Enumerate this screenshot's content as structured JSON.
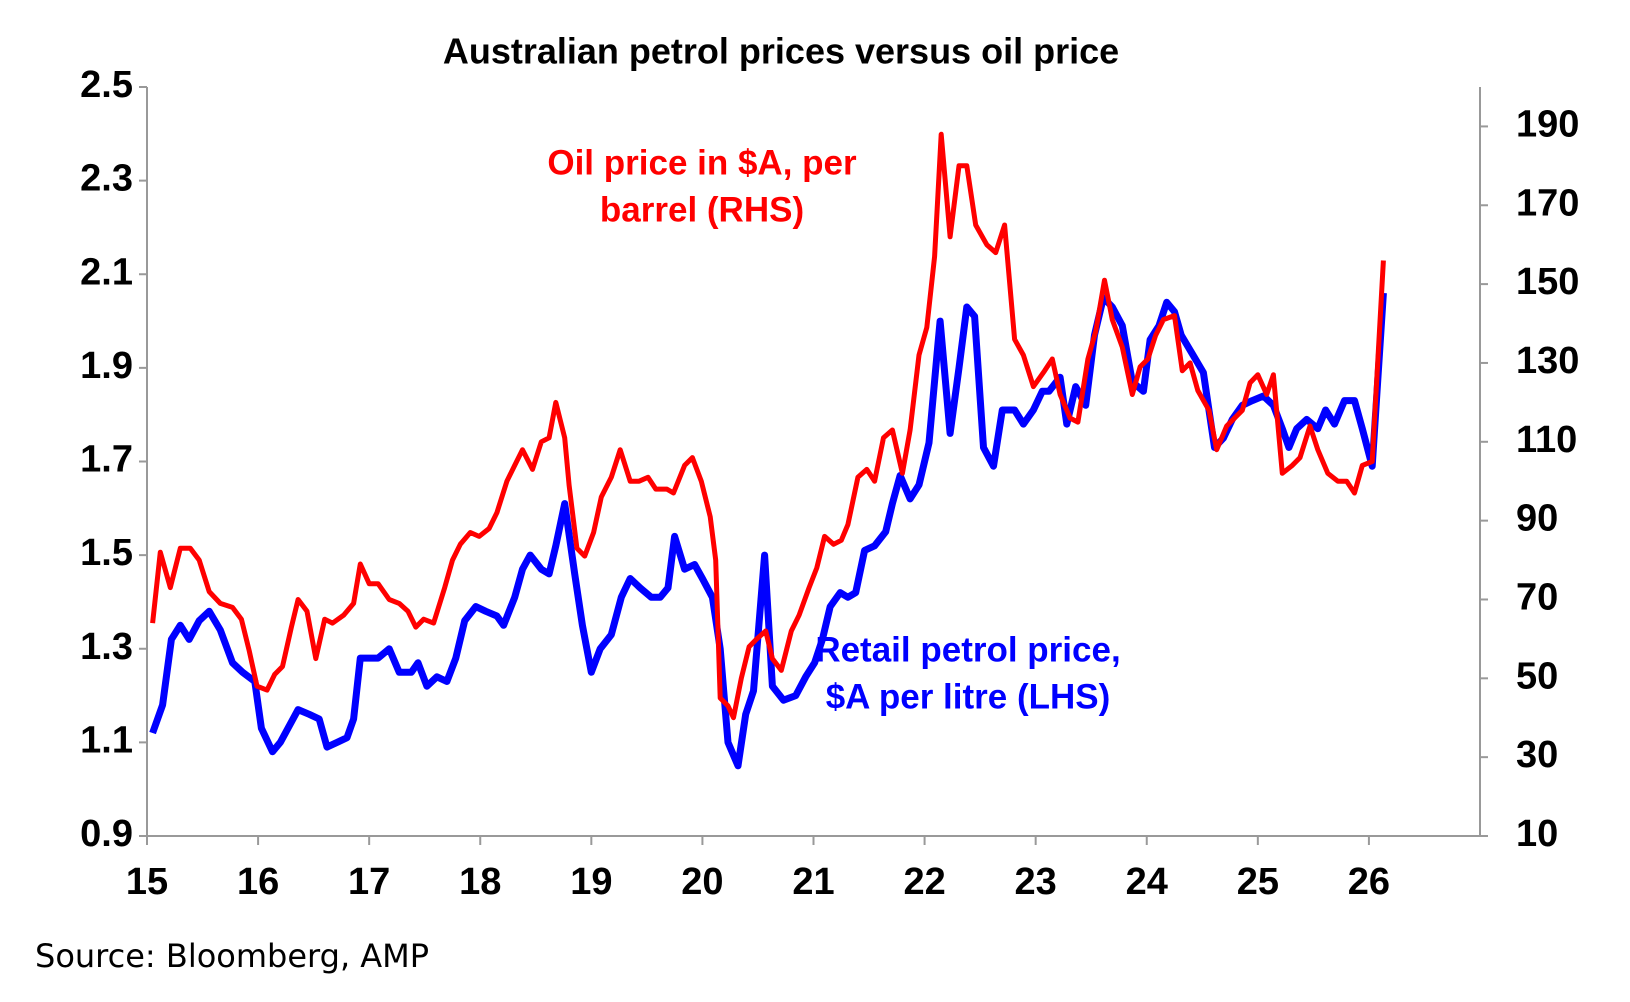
{
  "chart_data": {
    "type": "line",
    "title": "Australian petrol prices versus oil price",
    "source": "Source: Bloomberg, AMP",
    "xlim": [
      15,
      27
    ],
    "xticks": [
      15,
      16,
      17,
      18,
      19,
      20,
      21,
      22,
      23,
      24,
      25,
      26
    ],
    "ylim": [
      0.9,
      2.5
    ],
    "yticks": [
      0.9,
      1.1,
      1.3,
      1.5,
      1.7,
      1.9,
      2.1,
      2.3,
      2.5
    ],
    "y2lim": [
      10,
      200
    ],
    "y2ticks": [
      10,
      30,
      50,
      70,
      90,
      110,
      130,
      150,
      170,
      190
    ],
    "grid": false,
    "annotations": [
      {
        "lines": [
          "Oil price in $A, per",
          "barrel (RHS)"
        ],
        "color": "#ff0000"
      },
      {
        "lines": [
          "Retail petrol price,",
          "$A per litre (LHS)"
        ],
        "color": "#0000ff"
      }
    ],
    "series": [
      {
        "name": "Retail petrol price, $A per litre (LHS)",
        "color": "#0000ff",
        "axis": "y",
        "x": [
          15.05,
          15.14,
          15.22,
          15.3,
          15.38,
          15.47,
          15.56,
          15.66,
          15.77,
          15.86,
          15.97,
          16.03,
          16.13,
          16.2,
          16.36,
          16.46,
          16.55,
          16.62,
          16.71,
          16.8,
          16.86,
          16.92,
          17.08,
          17.18,
          17.27,
          17.38,
          17.44,
          17.52,
          17.61,
          17.7,
          17.78,
          17.86,
          17.96,
          18.05,
          18.15,
          18.21,
          18.31,
          18.38,
          18.45,
          18.55,
          18.62,
          18.68,
          18.76,
          18.85,
          18.92,
          19.0,
          19.08,
          19.18,
          19.27,
          19.35,
          19.44,
          19.54,
          19.62,
          19.69,
          19.75,
          19.84,
          19.93,
          20.0,
          20.09,
          20.16,
          20.23,
          20.32,
          20.39,
          20.46,
          20.56,
          20.63,
          20.73,
          20.84,
          20.93,
          21.01,
          21.08,
          21.15,
          21.24,
          21.31,
          21.38,
          21.46,
          21.55,
          21.65,
          21.71,
          21.78,
          21.87,
          21.95,
          22.04,
          22.12,
          22.14,
          22.23,
          22.31,
          22.38,
          22.45,
          22.53,
          22.62,
          22.7,
          22.81,
          22.89,
          22.98,
          23.06,
          23.12,
          23.22,
          23.28,
          23.36,
          23.45,
          23.53,
          23.61,
          23.69,
          23.78,
          23.87,
          23.97,
          24.03,
          24.11,
          24.18,
          24.25,
          24.31,
          24.41,
          24.51,
          24.61,
          24.69,
          24.77,
          24.86,
          24.95,
          25.05,
          25.14,
          25.22,
          25.28,
          25.35,
          25.44,
          25.54,
          25.61,
          25.69,
          25.78,
          25.87,
          25.94,
          26.03,
          26.13
        ],
        "values": [
          1.12,
          1.18,
          1.32,
          1.35,
          1.32,
          1.36,
          1.38,
          1.34,
          1.27,
          1.25,
          1.23,
          1.13,
          1.08,
          1.1,
          1.17,
          1.16,
          1.15,
          1.09,
          1.1,
          1.11,
          1.15,
          1.28,
          1.28,
          1.3,
          1.25,
          1.25,
          1.27,
          1.22,
          1.24,
          1.23,
          1.28,
          1.36,
          1.39,
          1.38,
          1.37,
          1.35,
          1.41,
          1.47,
          1.5,
          1.47,
          1.46,
          1.52,
          1.61,
          1.46,
          1.35,
          1.25,
          1.3,
          1.33,
          1.41,
          1.45,
          1.43,
          1.41,
          1.41,
          1.43,
          1.54,
          1.47,
          1.48,
          1.45,
          1.41,
          1.3,
          1.1,
          1.05,
          1.16,
          1.21,
          1.5,
          1.22,
          1.19,
          1.2,
          1.24,
          1.27,
          1.32,
          1.39,
          1.42,
          1.41,
          1.42,
          1.51,
          1.52,
          1.55,
          1.61,
          1.67,
          1.62,
          1.65,
          1.74,
          1.95,
          2.0,
          1.76,
          1.9,
          2.03,
          2.01,
          1.73,
          1.69,
          1.81,
          1.81,
          1.78,
          1.81,
          1.85,
          1.85,
          1.88,
          1.78,
          1.86,
          1.82,
          1.97,
          2.05,
          2.03,
          1.99,
          1.87,
          1.85,
          1.96,
          1.99,
          2.04,
          2.02,
          1.97,
          1.93,
          1.89,
          1.73,
          1.75,
          1.79,
          1.82,
          1.83,
          1.84,
          1.82,
          1.77,
          1.73,
          1.77,
          1.79,
          1.77,
          1.81,
          1.78,
          1.83,
          1.83,
          1.77,
          1.69,
          2.06
        ]
      },
      {
        "name": "Oil price in $A, per barrel (RHS)",
        "color": "#ff0000",
        "axis": "y2",
        "x": [
          15.05,
          15.12,
          15.21,
          15.3,
          15.39,
          15.47,
          15.56,
          15.66,
          15.77,
          15.85,
          15.92,
          15.99,
          16.08,
          16.15,
          16.22,
          16.3,
          16.36,
          16.44,
          16.52,
          16.6,
          16.67,
          16.77,
          16.86,
          16.92,
          17.0,
          17.08,
          17.18,
          17.27,
          17.35,
          17.42,
          17.49,
          17.58,
          17.68,
          17.75,
          17.82,
          17.91,
          17.99,
          18.08,
          18.15,
          18.24,
          18.31,
          18.38,
          18.47,
          18.55,
          18.62,
          18.68,
          18.76,
          18.8,
          18.87,
          18.94,
          19.02,
          19.09,
          19.18,
          19.26,
          19.35,
          19.43,
          19.51,
          19.58,
          19.68,
          19.74,
          19.84,
          19.91,
          19.99,
          20.07,
          20.12,
          20.16,
          20.23,
          20.28,
          20.35,
          20.42,
          20.49,
          20.57,
          20.63,
          20.71,
          20.8,
          20.87,
          20.96,
          21.03,
          21.1,
          21.18,
          21.25,
          21.31,
          21.4,
          21.48,
          21.55,
          21.63,
          21.71,
          21.8,
          21.87,
          21.95,
          22.02,
          22.09,
          22.15,
          22.23,
          22.31,
          22.38,
          22.46,
          22.56,
          22.64,
          22.72,
          22.81,
          22.89,
          22.98,
          23.08,
          23.15,
          23.22,
          23.31,
          23.38,
          23.47,
          23.54,
          23.62,
          23.69,
          23.78,
          23.87,
          23.94,
          24.01,
          24.08,
          24.15,
          24.25,
          24.32,
          24.39,
          24.46,
          24.56,
          24.63,
          24.72,
          24.79,
          24.86,
          24.93,
          25.0,
          25.08,
          25.14,
          25.22,
          25.31,
          25.38,
          25.47,
          25.54,
          25.63,
          25.72,
          25.8,
          25.87,
          25.94,
          26.03,
          26.13
        ],
        "values": [
          64,
          82,
          73,
          83,
          83,
          80,
          72,
          69,
          68,
          65,
          57,
          48,
          47,
          51,
          53,
          63,
          70,
          67,
          55,
          65,
          64,
          66,
          69,
          79,
          74,
          74,
          70,
          69,
          67,
          63,
          65,
          64,
          73,
          80,
          84,
          87,
          86,
          88,
          92,
          100,
          104,
          108,
          103,
          110,
          111,
          120,
          111,
          99,
          83,
          81,
          87,
          96,
          101,
          108,
          100,
          100,
          101,
          98,
          98,
          97,
          104,
          106,
          100,
          91,
          80,
          45,
          43,
          40,
          50,
          58,
          60,
          62,
          55,
          52,
          62,
          66,
          73,
          78,
          86,
          84,
          85,
          89,
          101,
          103,
          100,
          111,
          113,
          102,
          113,
          132,
          139,
          157,
          188,
          162,
          180,
          180,
          165,
          160,
          158,
          165,
          136,
          132,
          124,
          128,
          131,
          122,
          116,
          115,
          131,
          138,
          151,
          141,
          134,
          122,
          129,
          131,
          137,
          141,
          142,
          128,
          130,
          123,
          118,
          108,
          114,
          116,
          118,
          125,
          127,
          122,
          127,
          102,
          104,
          106,
          114,
          108,
          102,
          100,
          100,
          97,
          104,
          105,
          156
        ]
      }
    ]
  }
}
